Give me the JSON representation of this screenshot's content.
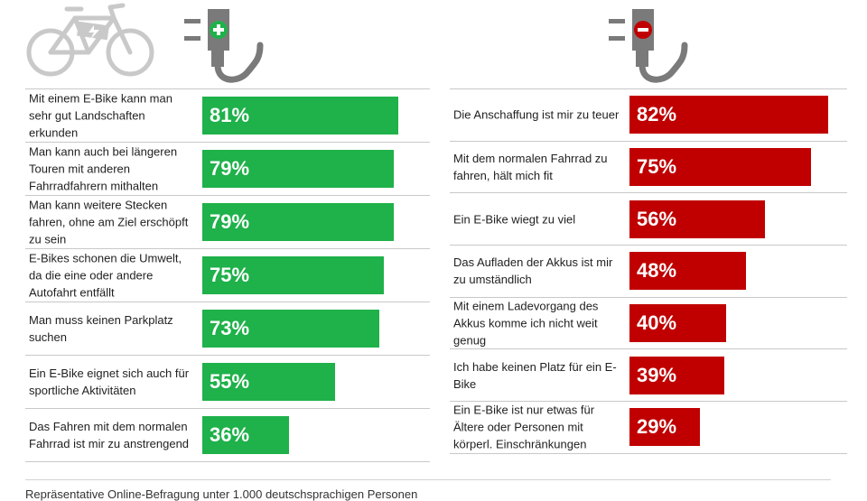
{
  "colors": {
    "pro": "#1fb14a",
    "contra": "#c00000",
    "icon_gray": "#7a7a7a",
    "bike_gray": "#c9c9c9"
  },
  "chart_data": [
    {
      "type": "bar",
      "orientation": "horizontal",
      "name": "pro",
      "categories": [
        "Mit einem E-Bike kann man sehr gut Landschaften erkunden",
        "Man kann auch bei längeren Touren mit anderen Fahrradfahrern mithalten",
        "Man kann weitere Stecken fahren, ohne am Ziel erschöpft zu sein",
        "E-Bikes schonen die Umwelt, da die eine oder andere Autofahrt entfällt",
        "Man muss keinen Parkplatz suchen",
        "Ein E-Bike eignet sich auch für sportliche Aktivitäten",
        "Das Fahren mit dem normalen Fahrrad ist mir zu anstrengend"
      ],
      "values": [
        81,
        79,
        79,
        75,
        73,
        55,
        36
      ],
      "labels": [
        "81%",
        "79%",
        "79%",
        "75%",
        "73%",
        "55%",
        "36%"
      ],
      "unit": "%",
      "xlim": [
        0,
        100
      ]
    },
    {
      "type": "bar",
      "orientation": "horizontal",
      "name": "contra",
      "categories": [
        "Die Anschaffung ist mir zu teuer",
        "Mit dem normalen Fahrrad zu fahren, hält mich fit",
        "Ein E-Bike wiegt zu viel",
        "Das Aufladen der Akkus ist mir zu umständlich",
        "Mit einem Ladevorgang des Akkus komme  ich nicht weit genug",
        "Ich habe keinen Platz für ein E-Bike",
        "Ein E-Bike ist nur etwas für Ältere oder Personen mit körperl.  Einschränkungen"
      ],
      "values": [
        82,
        75,
        56,
        48,
        40,
        39,
        29
      ],
      "labels": [
        "82%",
        "75%",
        "56%",
        "48%",
        "40%",
        "39%",
        "29%"
      ],
      "unit": "%",
      "xlim": [
        0,
        100
      ]
    }
  ],
  "footer": {
    "note": "Repräsentative Online-Befragung unter 1.000 deutschsprachigen Personen"
  }
}
